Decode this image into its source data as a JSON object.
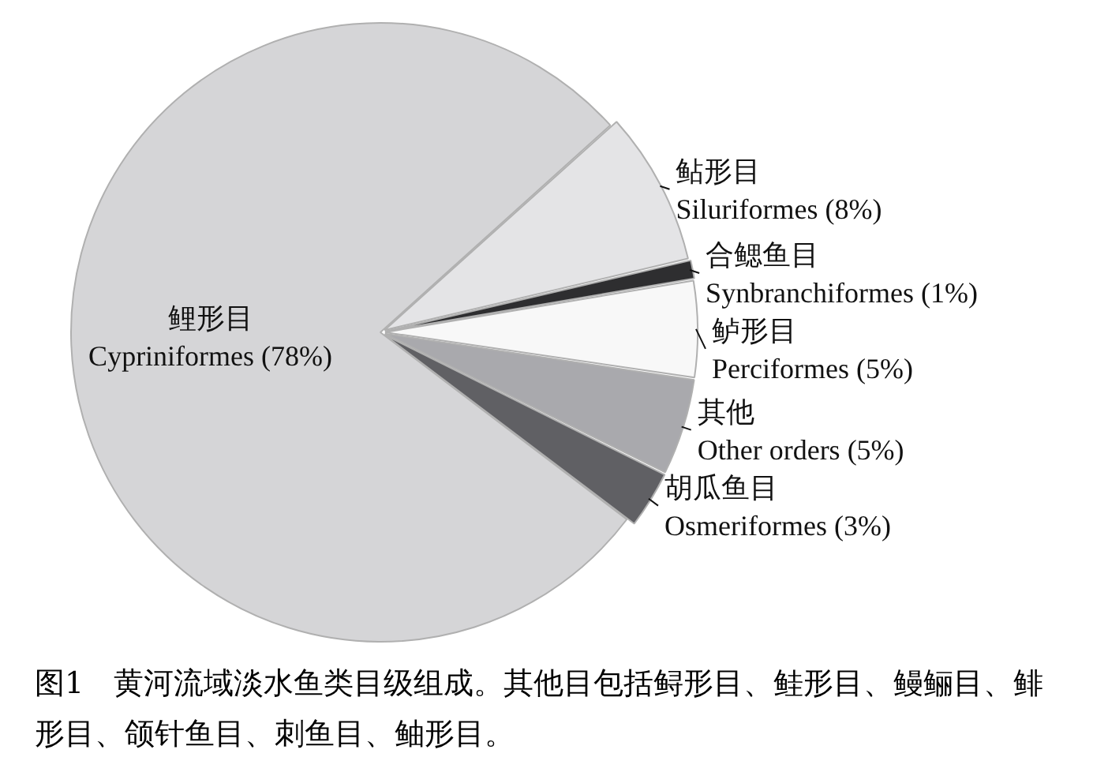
{
  "chart_data": {
    "type": "pie",
    "categories": [
      "鲇形目\nSiluriformes",
      "合鳃鱼目\nSynbranchiformes",
      "鲈形目\nPerciformes",
      "其他\nOther orders",
      "胡瓜鱼目\nOsmeriformes",
      "鲤形目\nCypriniformes"
    ],
    "values": [
      8,
      1,
      5,
      5,
      3,
      78
    ],
    "value_labels": [
      "(8%)",
      "(1%)",
      "(5%)",
      "(5%)",
      "(3%)",
      "(78%)"
    ],
    "colors": [
      "#e4e4e6",
      "#2e2e30",
      "#f8f8f8",
      "#a9a9ad",
      "#606064",
      "#d5d5d7"
    ],
    "legend": false,
    "annotations": [
      "图1　黄河流域淡水鱼类目级组成。其他目包括鲟形目、鲑形目、鳗鲡目、鲱形目、颌针鱼目、刺鱼目、鲉形目。"
    ]
  }
}
